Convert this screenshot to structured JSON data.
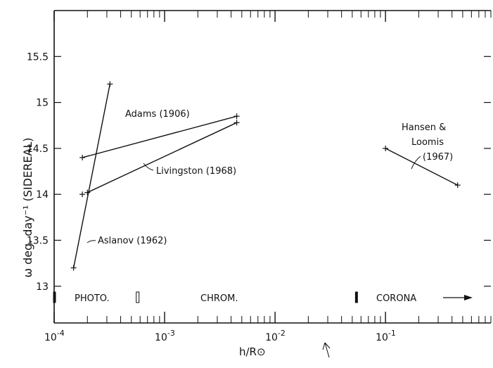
{
  "chart_data": {
    "type": "line",
    "title": "",
    "xlabel": "h/R⊙",
    "ylabel": "ω deg. day⁻¹ (SIDEREAL)",
    "x_scale": "log",
    "xlim": [
      0.0001,
      0.9
    ],
    "ylim": [
      12.6,
      16.0
    ],
    "grid": false,
    "x_ticks": [
      {
        "value": 0.0001,
        "mantissa": "10",
        "exp": "-4"
      },
      {
        "value": 0.001,
        "mantissa": "10",
        "exp": "-3"
      },
      {
        "value": 0.01,
        "mantissa": "10",
        "exp": "-2"
      },
      {
        "value": 0.1,
        "mantissa": "10",
        "exp": "-1"
      }
    ],
    "y_ticks": [
      {
        "value": 13,
        "label": "13"
      },
      {
        "value": 13.5,
        "label": "13.5"
      },
      {
        "value": 14,
        "label": "14"
      },
      {
        "value": 14.5,
        "label": "14.5"
      },
      {
        "value": 15,
        "label": "15"
      },
      {
        "value": 15.5,
        "label": "15.5"
      }
    ],
    "series": [
      {
        "name": "Adams (1906)",
        "points": [
          [
            0.00018,
            14.4
          ],
          [
            0.0045,
            14.85
          ]
        ]
      },
      {
        "name": "Livingston (1968)",
        "points": [
          [
            0.0002,
            14.02
          ],
          [
            0.0045,
            14.78
          ]
        ]
      },
      {
        "name": "Aslanov (1962)",
        "points": [
          [
            0.00015,
            13.2
          ],
          [
            0.00032,
            15.2
          ]
        ]
      },
      {
        "name": "Hansen & Loomis (1967)",
        "points": [
          [
            0.1,
            14.5
          ],
          [
            0.45,
            14.1
          ]
        ]
      }
    ],
    "extra_markers": [
      [
        0.00018,
        14.0
      ]
    ],
    "annotations": {
      "adams": "Adams (1906)",
      "livingston": "Livingston (1968)",
      "aslanov": "Aslanov (1962)",
      "hansen_line1": "Hansen &",
      "hansen_line2": "Loomis",
      "hansen_line3": "(1967)"
    },
    "regions": [
      {
        "label": "PHOTO.",
        "at": 0.00013
      },
      {
        "label": "CHROM.",
        "at": 0.0016
      },
      {
        "label": "CORONA",
        "at": 0.08
      }
    ],
    "region_boundaries": [
      0.0001,
      0.00057,
      0.055
    ]
  }
}
